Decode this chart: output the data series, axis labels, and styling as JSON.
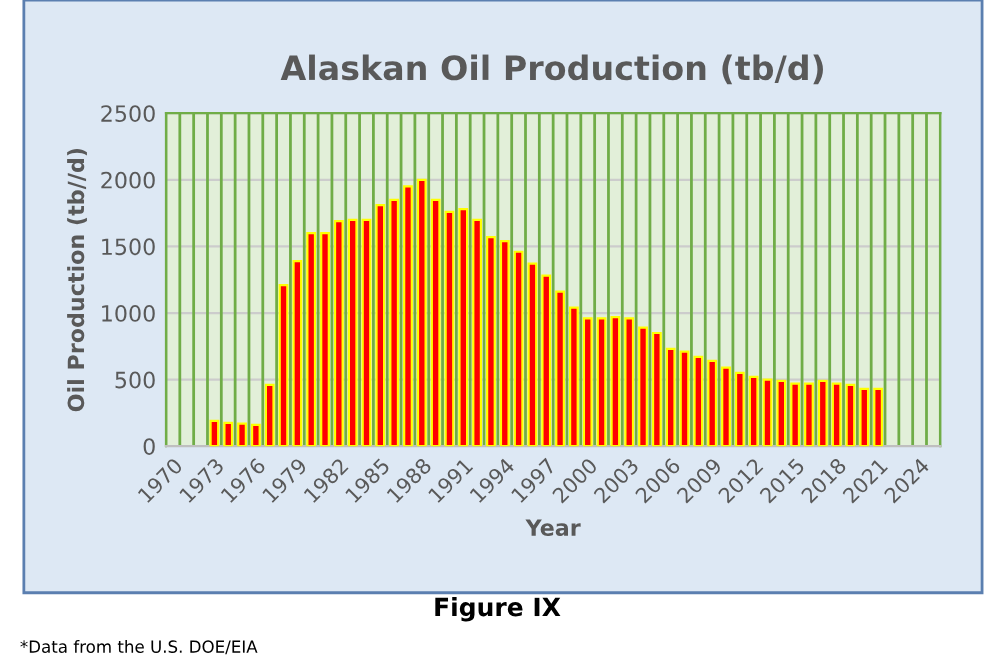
{
  "chart_data": {
    "type": "bar",
    "title": "Alaskan Oil Production (tb/d)",
    "xlabel": "Year",
    "ylabel": "Oil Production (tb//d)",
    "categories": [
      "1970",
      null,
      null,
      "1973",
      null,
      null,
      "1976",
      null,
      null,
      "1979",
      null,
      null,
      "1982",
      null,
      null,
      "1985",
      null,
      null,
      "1988",
      null,
      null,
      "1991",
      null,
      null,
      "1994",
      null,
      null,
      "1997",
      null,
      null,
      "2000",
      null,
      null,
      "2003",
      null,
      null,
      "2006",
      null,
      null,
      "2009",
      null,
      null,
      "2012",
      null,
      null,
      "2015",
      null,
      null,
      "2018",
      null,
      null,
      "2021",
      null,
      null,
      "2024",
      null
    ],
    "values": [
      null,
      null,
      null,
      190,
      175,
      170,
      160,
      460,
      1210,
      1390,
      1600,
      1600,
      1690,
      1700,
      1700,
      1810,
      1850,
      1950,
      2000,
      1850,
      1760,
      1780,
      1700,
      1570,
      1540,
      1460,
      1370,
      1280,
      1160,
      1040,
      960,
      960,
      970,
      960,
      890,
      850,
      730,
      710,
      670,
      640,
      590,
      550,
      520,
      500,
      490,
      470,
      470,
      490,
      470,
      460,
      430,
      430,
      null,
      null,
      null,
      null
    ],
    "color": "#ff0000",
    "ylim": [
      0,
      2500
    ],
    "yticks": [
      0,
      500,
      1000,
      1500,
      2000,
      2500
    ],
    "grid": true,
    "annotations": [
      "Figure IX",
      "*Data from the U.S. DOE/EIA"
    ]
  }
}
